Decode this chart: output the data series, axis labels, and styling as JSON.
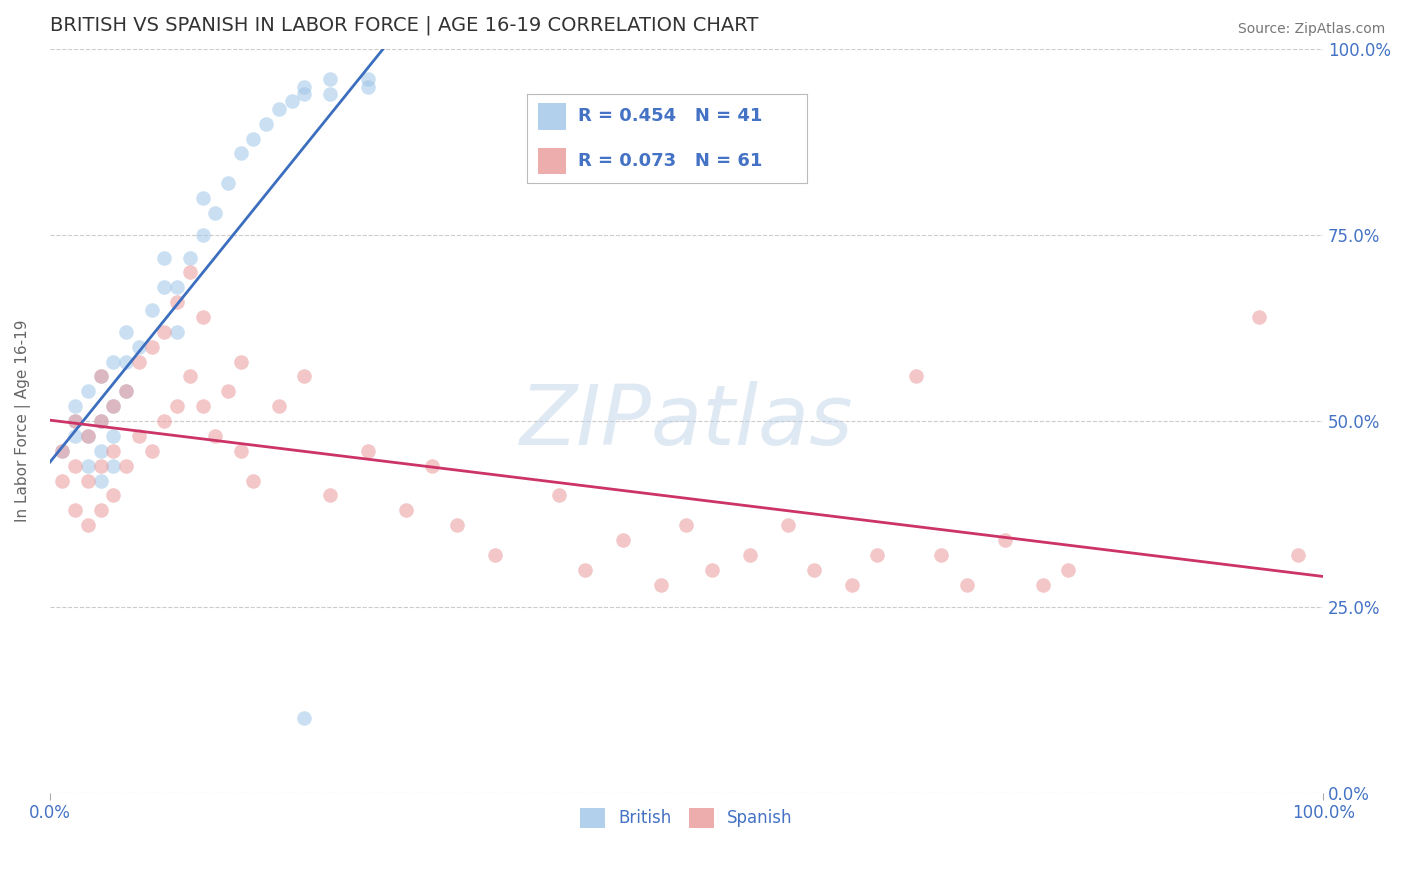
{
  "title": "BRITISH VS SPANISH IN LABOR FORCE | AGE 16-19 CORRELATION CHART",
  "source_text": "Source: ZipAtlas.com",
  "ylabel": "In Labor Force | Age 16-19",
  "xlim": [
    0.0,
    1.0
  ],
  "ylim": [
    0.0,
    1.0
  ],
  "ytick_positions": [
    0.0,
    0.25,
    0.5,
    0.75,
    1.0
  ],
  "ytick_labels": [
    "0.0%",
    "25.0%",
    "50.0%",
    "75.0%",
    "100.0%"
  ],
  "xtick_positions": [
    0.0,
    1.0
  ],
  "xtick_labels": [
    "0.0%",
    "100.0%"
  ],
  "title_color": "#333333",
  "title_fontsize": 14,
  "axis_label_color": "#666666",
  "tick_label_color": "#4472c4",
  "grid_color": "#cccccc",
  "grid_linestyle": "--",
  "watermark_text": "ZIPatlas",
  "watermark_color": "#b8cfe8",
  "watermark_alpha": 0.45,
  "british_color": "#9fc5e8",
  "spanish_color": "#ea9999",
  "british_alpha": 0.55,
  "spanish_alpha": 0.55,
  "marker_size": 110,
  "line_blue_color": "#3c6ebf",
  "line_pink_color": "#cc3366",
  "line_width": 2.0,
  "legend_R_british": "R = 0.454",
  "legend_N_british": "N = 41",
  "legend_R_spanish": "R = 0.073",
  "legend_N_spanish": "N = 61",
  "legend_text_color": "#4472c4",
  "legend_fontsize": 13,
  "british_x": [
    0.01,
    0.02,
    0.02,
    0.02,
    0.03,
    0.03,
    0.03,
    0.04,
    0.04,
    0.04,
    0.04,
    0.05,
    0.05,
    0.05,
    0.05,
    0.06,
    0.06,
    0.06,
    0.07,
    0.08,
    0.09,
    0.09,
    0.1,
    0.1,
    0.11,
    0.12,
    0.12,
    0.13,
    0.14,
    0.15,
    0.16,
    0.17,
    0.18,
    0.19,
    0.2,
    0.22,
    0.25,
    0.2,
    0.22,
    0.25,
    0.2
  ],
  "british_y": [
    0.46,
    0.48,
    0.5,
    0.52,
    0.44,
    0.48,
    0.54,
    0.42,
    0.46,
    0.5,
    0.56,
    0.44,
    0.48,
    0.52,
    0.58,
    0.54,
    0.58,
    0.62,
    0.6,
    0.65,
    0.68,
    0.72,
    0.62,
    0.68,
    0.72,
    0.75,
    0.8,
    0.78,
    0.82,
    0.86,
    0.88,
    0.9,
    0.92,
    0.93,
    0.94,
    0.94,
    0.95,
    0.95,
    0.96,
    0.96,
    0.1
  ],
  "spanish_x": [
    0.01,
    0.01,
    0.02,
    0.02,
    0.02,
    0.03,
    0.03,
    0.03,
    0.04,
    0.04,
    0.04,
    0.04,
    0.05,
    0.05,
    0.05,
    0.06,
    0.06,
    0.07,
    0.07,
    0.08,
    0.08,
    0.09,
    0.09,
    0.1,
    0.1,
    0.11,
    0.11,
    0.12,
    0.12,
    0.13,
    0.14,
    0.15,
    0.15,
    0.16,
    0.18,
    0.2,
    0.22,
    0.25,
    0.28,
    0.3,
    0.32,
    0.35,
    0.4,
    0.42,
    0.45,
    0.48,
    0.5,
    0.52,
    0.55,
    0.58,
    0.6,
    0.63,
    0.65,
    0.68,
    0.7,
    0.72,
    0.75,
    0.78,
    0.8,
    0.95,
    0.98
  ],
  "spanish_y": [
    0.42,
    0.46,
    0.38,
    0.44,
    0.5,
    0.36,
    0.42,
    0.48,
    0.38,
    0.44,
    0.5,
    0.56,
    0.4,
    0.46,
    0.52,
    0.44,
    0.54,
    0.48,
    0.58,
    0.46,
    0.6,
    0.5,
    0.62,
    0.52,
    0.66,
    0.56,
    0.7,
    0.52,
    0.64,
    0.48,
    0.54,
    0.46,
    0.58,
    0.42,
    0.52,
    0.56,
    0.4,
    0.46,
    0.38,
    0.44,
    0.36,
    0.32,
    0.4,
    0.3,
    0.34,
    0.28,
    0.36,
    0.3,
    0.32,
    0.36,
    0.3,
    0.28,
    0.32,
    0.56,
    0.32,
    0.28,
    0.34,
    0.28,
    0.3,
    0.64,
    0.32
  ]
}
